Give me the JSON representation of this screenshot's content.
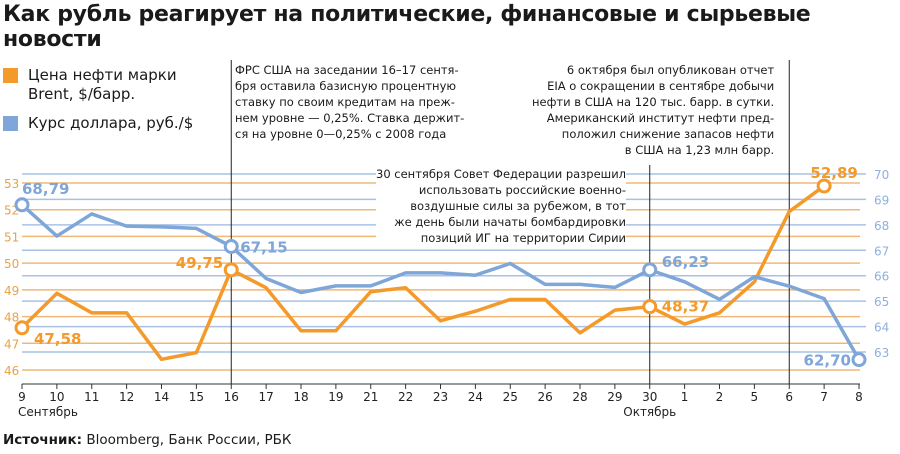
{
  "title": "Как рубль реагирует на политические, финансовые и сырьевые новости",
  "legend": [
    {
      "label_lines": [
        "Цена нефти марки",
        "Brent, $/барр."
      ],
      "color": "#f39a2b"
    },
    {
      "label_lines": [
        "Курс доллара, руб./$"
      ],
      "color": "#7ea6d8"
    }
  ],
  "annotations": [
    {
      "lines": [
        "ФРС США на заседании 16–17 сентя-",
        "бря оставила базисную процентную",
        "ставку по своим кредитам на преж-",
        "нем уровне — 0,25%. Ставка держит-",
        "ся на уровне 0—0,25% с 2008 года"
      ]
    },
    {
      "lines": [
        "6 октября был опубликован отчет",
        "EIA о  сокращении в сентябре добычи",
        "нефти в США на 120 тыс. барр. в сутки.",
        "Американский институт нефти пред-",
        "положил снижение запасов нефти",
        "в США на 1,23 млн барр."
      ]
    },
    {
      "lines": [
        "30 сентября Совет Федерации разрешил",
        "использовать российские военно-",
        "воздушные силы за рубежом, в тот",
        "же день были начаты бомбардировки",
        "позиций ИГ на территории Сирии"
      ]
    }
  ],
  "source": {
    "label": "Источник:",
    "text": " Bloomberg, Банк России, РБК"
  },
  "chart_data": {
    "type": "line",
    "title": "Как рубль реагирует на политические, финансовые и сырьевые новости",
    "categories": [
      "9",
      "10",
      "11",
      "12",
      "14",
      "15",
      "16",
      "17",
      "18",
      "19",
      "21",
      "22",
      "23",
      "24",
      "25",
      "26",
      "28",
      "29",
      "30",
      "1",
      "2",
      "5",
      "6",
      "7",
      "8"
    ],
    "month_labels": [
      {
        "at": "9",
        "label": "Сентябрь"
      },
      {
        "at": "30",
        "label": "Октябрь"
      }
    ],
    "event_markers": [
      "16",
      "30",
      "6"
    ],
    "series": [
      {
        "name": "Цена нефти марки Brent, $/барр.",
        "axis": "left",
        "color": "#f39a2b",
        "values": [
          47.58,
          48.87,
          48.14,
          48.14,
          46.4,
          46.65,
          49.75,
          49.08,
          47.47,
          47.47,
          48.93,
          49.08,
          47.84,
          48.2,
          48.64,
          48.64,
          47.39,
          48.24,
          48.37,
          47.72,
          48.14,
          49.3,
          51.93,
          52.89,
          null
        ],
        "labels": [
          {
            "at": "9",
            "text": "47,58"
          },
          {
            "at": "16",
            "text": "49,75"
          },
          {
            "at": "30",
            "text": "48,37"
          },
          {
            "at": "7",
            "text": "52,89"
          }
        ]
      },
      {
        "name": "Курс доллара, руб./$",
        "axis": "right",
        "color": "#7ea6d8",
        "values": [
          68.79,
          67.56,
          68.43,
          67.95,
          67.92,
          67.86,
          67.15,
          65.89,
          65.34,
          65.6,
          65.6,
          66.11,
          66.11,
          66.02,
          66.48,
          65.66,
          65.66,
          65.54,
          66.23,
          65.76,
          65.07,
          65.96,
          65.59,
          65.1,
          62.7
        ],
        "labels": [
          {
            "at": "9",
            "text": "68,79"
          },
          {
            "at": "16",
            "text": "67,15"
          },
          {
            "at": "30",
            "text": "66,23"
          },
          {
            "at": "8",
            "text": "62,70"
          }
        ]
      }
    ],
    "left_axis": {
      "ylim": [
        46,
        53
      ],
      "ticks": [
        "46",
        "47",
        "48",
        "49",
        "50",
        "51",
        "52",
        "53"
      ],
      "color": "#e8a24a"
    },
    "right_axis": {
      "ylim": [
        63,
        70
      ],
      "ticks": [
        "63",
        "64",
        "65",
        "66",
        "67",
        "68",
        "69",
        "70"
      ],
      "color": "#8fb0dc"
    },
    "grid": true
  }
}
